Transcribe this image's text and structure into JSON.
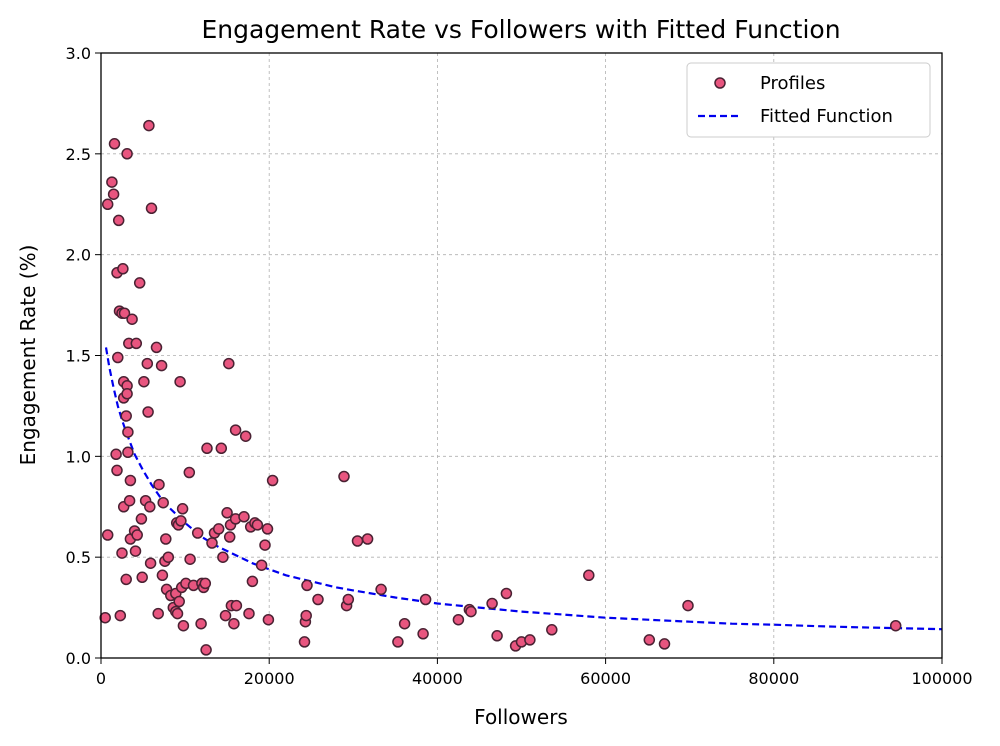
{
  "chart_data": {
    "type": "scatter",
    "title": "Engagement Rate vs Followers with Fitted Function",
    "xlabel": "Followers",
    "ylabel": "Engagement Rate (%)",
    "xlim": [
      0,
      100000
    ],
    "ylim": [
      0,
      3.0
    ],
    "xticks": [
      0,
      20000,
      40000,
      60000,
      80000,
      100000
    ],
    "xtick_labels": [
      "0",
      "20000",
      "40000",
      "60000",
      "80000",
      "100000"
    ],
    "yticks": [
      0.0,
      0.5,
      1.0,
      1.5,
      2.0,
      2.5,
      3.0
    ],
    "ytick_labels": [
      "0.0",
      "0.5",
      "1.0",
      "1.5",
      "2.0",
      "2.5",
      "3.0"
    ],
    "grid": true,
    "legend_position": "top-right",
    "legend": [
      "Profiles",
      "Fitted Function"
    ],
    "colors": {
      "points_fill": "#e8557f",
      "points_edge": "#4a2233",
      "fit_line": "#0000ee",
      "grid": "#b0b0b0"
    },
    "series": [
      {
        "name": "Profiles",
        "kind": "scatter",
        "points": [
          [
            500,
            0.2
          ],
          [
            800,
            0.61
          ],
          [
            800,
            2.25
          ],
          [
            1300,
            2.36
          ],
          [
            1500,
            2.3
          ],
          [
            1600,
            2.55
          ],
          [
            1800,
            1.01
          ],
          [
            1900,
            0.93
          ],
          [
            1900,
            1.91
          ],
          [
            2000,
            1.49
          ],
          [
            2100,
            2.17
          ],
          [
            2200,
            1.72
          ],
          [
            2300,
            0.21
          ],
          [
            2500,
            1.71
          ],
          [
            2500,
            0.52
          ],
          [
            2600,
            1.93
          ],
          [
            2700,
            0.75
          ],
          [
            2700,
            1.37
          ],
          [
            2700,
            1.29
          ],
          [
            2800,
            1.71
          ],
          [
            3000,
            1.2
          ],
          [
            3000,
            0.39
          ],
          [
            3100,
            1.35
          ],
          [
            3100,
            1.31
          ],
          [
            3100,
            2.5
          ],
          [
            3200,
            1.12
          ],
          [
            3200,
            1.02
          ],
          [
            3300,
            1.56
          ],
          [
            3400,
            0.78
          ],
          [
            3500,
            0.88
          ],
          [
            3500,
            0.59
          ],
          [
            3700,
            1.68
          ],
          [
            4000,
            0.63
          ],
          [
            4100,
            0.53
          ],
          [
            4200,
            1.56
          ],
          [
            4300,
            0.61
          ],
          [
            4600,
            1.86
          ],
          [
            4800,
            0.69
          ],
          [
            4900,
            0.4
          ],
          [
            5100,
            1.37
          ],
          [
            5300,
            0.78
          ],
          [
            5500,
            1.46
          ],
          [
            5600,
            1.22
          ],
          [
            5700,
            2.64
          ],
          [
            5800,
            0.75
          ],
          [
            5900,
            0.47
          ],
          [
            6000,
            2.23
          ],
          [
            6600,
            1.54
          ],
          [
            6800,
            0.22
          ],
          [
            6900,
            0.86
          ],
          [
            7200,
            1.45
          ],
          [
            7300,
            0.41
          ],
          [
            7400,
            0.77
          ],
          [
            7600,
            0.48
          ],
          [
            7700,
            0.59
          ],
          [
            7800,
            0.34
          ],
          [
            8000,
            0.5
          ],
          [
            8300,
            0.31
          ],
          [
            8600,
            0.25
          ],
          [
            8900,
            0.32
          ],
          [
            8900,
            0.23
          ],
          [
            9000,
            0.67
          ],
          [
            9100,
            0.22
          ],
          [
            9200,
            0.66
          ],
          [
            9300,
            0.28
          ],
          [
            9400,
            1.37
          ],
          [
            9500,
            0.68
          ],
          [
            9600,
            0.35
          ],
          [
            9700,
            0.74
          ],
          [
            9800,
            0.16
          ],
          [
            10100,
            0.37
          ],
          [
            10500,
            0.92
          ],
          [
            10600,
            0.49
          ],
          [
            11000,
            0.36
          ],
          [
            11500,
            0.62
          ],
          [
            11900,
            0.17
          ],
          [
            12000,
            0.37
          ],
          [
            12200,
            0.35
          ],
          [
            12400,
            0.37
          ],
          [
            12500,
            0.04
          ],
          [
            12600,
            1.04
          ],
          [
            13200,
            0.57
          ],
          [
            13500,
            0.62
          ],
          [
            14000,
            0.64
          ],
          [
            14300,
            1.04
          ],
          [
            14500,
            0.5
          ],
          [
            14800,
            0.21
          ],
          [
            15000,
            0.72
          ],
          [
            15200,
            1.46
          ],
          [
            15300,
            0.6
          ],
          [
            15400,
            0.66
          ],
          [
            15500,
            0.26
          ],
          [
            15800,
            0.17
          ],
          [
            16000,
            0.69
          ],
          [
            16000,
            1.13
          ],
          [
            16100,
            0.26
          ],
          [
            17000,
            0.7
          ],
          [
            17200,
            1.1
          ],
          [
            17600,
            0.22
          ],
          [
            17800,
            0.65
          ],
          [
            18000,
            0.38
          ],
          [
            18300,
            0.67
          ],
          [
            18600,
            0.66
          ],
          [
            19100,
            0.46
          ],
          [
            19500,
            0.56
          ],
          [
            19800,
            0.64
          ],
          [
            19900,
            0.19
          ],
          [
            20400,
            0.88
          ],
          [
            24200,
            0.08
          ],
          [
            24300,
            0.18
          ],
          [
            24400,
            0.21
          ],
          [
            24500,
            0.36
          ],
          [
            25800,
            0.29
          ],
          [
            28900,
            0.9
          ],
          [
            29200,
            0.26
          ],
          [
            29400,
            0.29
          ],
          [
            30500,
            0.58
          ],
          [
            31700,
            0.59
          ],
          [
            33300,
            0.34
          ],
          [
            35300,
            0.08
          ],
          [
            36100,
            0.17
          ],
          [
            38300,
            0.12
          ],
          [
            38600,
            0.29
          ],
          [
            42500,
            0.19
          ],
          [
            43800,
            0.24
          ],
          [
            44000,
            0.23
          ],
          [
            46500,
            0.27
          ],
          [
            47100,
            0.11
          ],
          [
            48200,
            0.32
          ],
          [
            49300,
            0.06
          ],
          [
            50000,
            0.08
          ],
          [
            51000,
            0.09
          ],
          [
            53600,
            0.14
          ],
          [
            58000,
            0.41
          ],
          [
            65200,
            0.09
          ],
          [
            67000,
            0.07
          ],
          [
            69800,
            0.26
          ],
          [
            94500,
            0.16
          ]
        ]
      },
      {
        "name": "Fitted Function",
        "kind": "line",
        "dashed": true,
        "points": [
          [
            600,
            1.54
          ],
          [
            1000,
            1.44
          ],
          [
            1500,
            1.34
          ],
          [
            2000,
            1.25
          ],
          [
            2500,
            1.18
          ],
          [
            3000,
            1.12
          ],
          [
            4000,
            1.01
          ],
          [
            5000,
            0.93
          ],
          [
            6000,
            0.86
          ],
          [
            7000,
            0.8
          ],
          [
            8000,
            0.75
          ],
          [
            9000,
            0.71
          ],
          [
            10000,
            0.67
          ],
          [
            12000,
            0.6
          ],
          [
            14000,
            0.55
          ],
          [
            16000,
            0.51
          ],
          [
            18000,
            0.47
          ],
          [
            20000,
            0.44
          ],
          [
            22000,
            0.41
          ],
          [
            24000,
            0.39
          ],
          [
            26000,
            0.37
          ],
          [
            28000,
            0.35
          ],
          [
            30000,
            0.335
          ],
          [
            35000,
            0.3
          ],
          [
            40000,
            0.27
          ],
          [
            45000,
            0.25
          ],
          [
            50000,
            0.23
          ],
          [
            55000,
            0.215
          ],
          [
            60000,
            0.2
          ],
          [
            65000,
            0.19
          ],
          [
            70000,
            0.18
          ],
          [
            75000,
            0.17
          ],
          [
            80000,
            0.165
          ],
          [
            85000,
            0.158
          ],
          [
            90000,
            0.152
          ],
          [
            95000,
            0.148
          ],
          [
            100000,
            0.143
          ]
        ]
      }
    ]
  }
}
